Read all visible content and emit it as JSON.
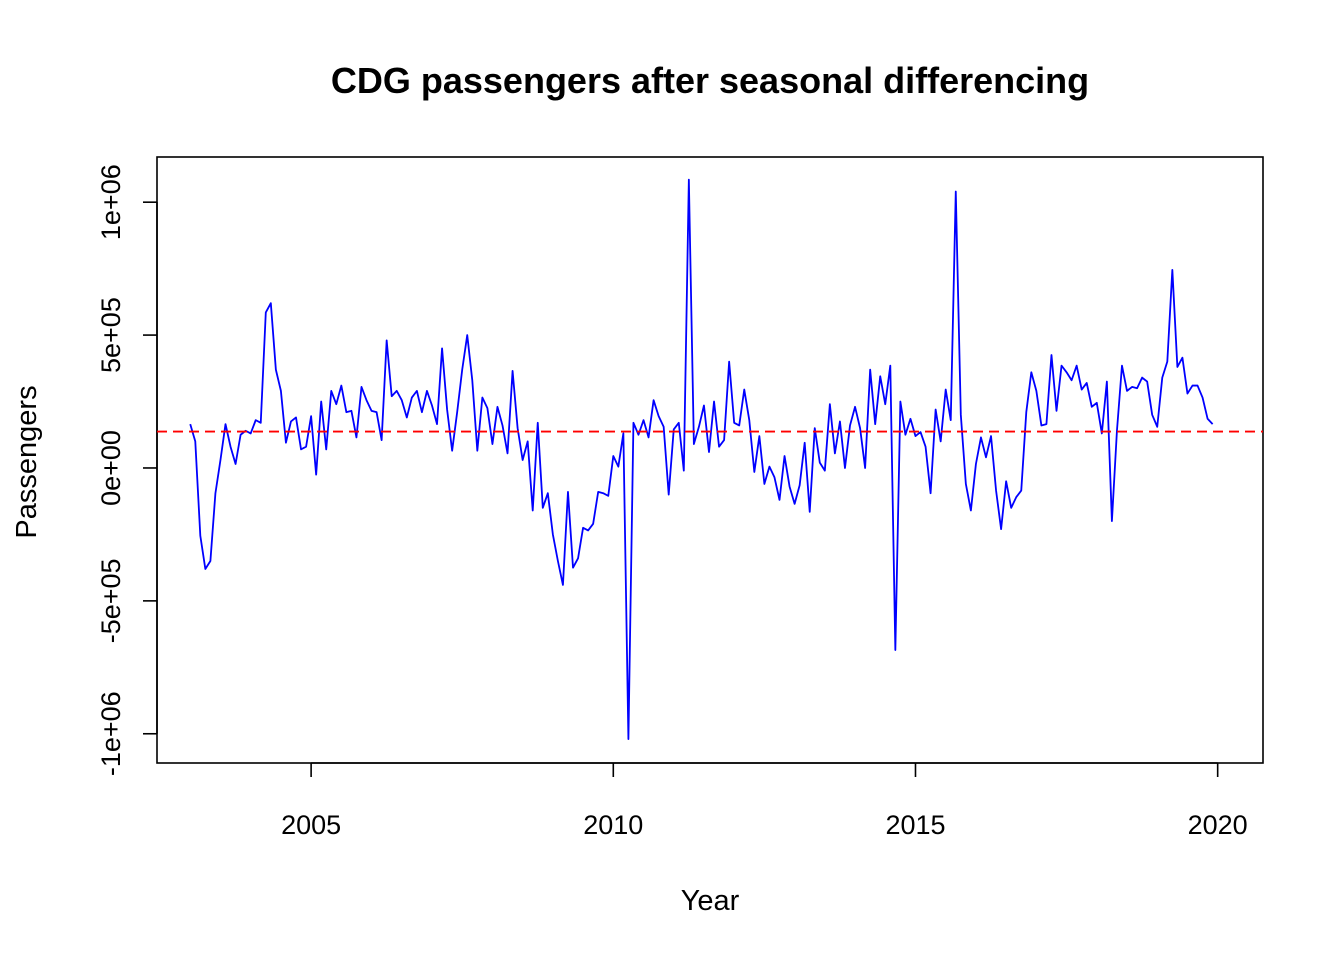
{
  "chart_data": {
    "type": "line",
    "title": "CDG passengers after seasonal differencing",
    "xlabel": "Year",
    "ylabel": "Passengers",
    "xlim": [
      2002.45,
      2020.75
    ],
    "ylim": [
      -1110000,
      1170000
    ],
    "x_ticks": [
      2005,
      2010,
      2015,
      2020
    ],
    "x_tick_labels": [
      "2005",
      "2010",
      "2015",
      "2020"
    ],
    "y_ticks": [
      -1000000,
      -500000,
      0,
      500000,
      1000000
    ],
    "y_tick_labels": [
      "-1e+06",
      "-5e+05",
      "0e+00",
      "5e+05",
      "1e+06"
    ],
    "grid": false,
    "legend": "none",
    "series": [
      {
        "color": "#0000ff",
        "x_start": 2003.0,
        "x_step": 0.083333,
        "values": [
          165000,
          100000,
          -255000,
          -380000,
          -350000,
          -95000,
          30000,
          165000,
          80000,
          15000,
          125000,
          140000,
          130000,
          180000,
          170000,
          585000,
          620000,
          370000,
          290000,
          95000,
          175000,
          190000,
          70000,
          80000,
          195000,
          -25000,
          250000,
          70000,
          290000,
          240000,
          310000,
          210000,
          215000,
          115000,
          305000,
          255000,
          215000,
          210000,
          105000,
          480000,
          270000,
          290000,
          255000,
          190000,
          265000,
          290000,
          210000,
          290000,
          235000,
          165000,
          450000,
          220000,
          65000,
          210000,
          370000,
          500000,
          330000,
          65000,
          265000,
          225000,
          90000,
          230000,
          160000,
          55000,
          365000,
          150000,
          30000,
          100000,
          -160000,
          170000,
          -150000,
          -95000,
          -250000,
          -350000,
          -440000,
          -90000,
          -375000,
          -340000,
          -225000,
          -235000,
          -210000,
          -90000,
          -95000,
          -105000,
          45000,
          5000,
          130000,
          -1020000,
          170000,
          125000,
          180000,
          115000,
          255000,
          195000,
          155000,
          -100000,
          145000,
          170000,
          -10000,
          1085000,
          90000,
          155000,
          235000,
          60000,
          250000,
          80000,
          105000,
          400000,
          170000,
          160000,
          295000,
          180000,
          -15000,
          120000,
          -60000,
          5000,
          -35000,
          -120000,
          45000,
          -70000,
          -135000,
          -65000,
          95000,
          -165000,
          150000,
          20000,
          -10000,
          240000,
          55000,
          175000,
          0,
          160000,
          230000,
          150000,
          0,
          370000,
          165000,
          345000,
          240000,
          385000,
          -685000,
          250000,
          125000,
          185000,
          120000,
          135000,
          80000,
          -95000,
          220000,
          100000,
          295000,
          180000,
          1040000,
          200000,
          -60000,
          -160000,
          15000,
          115000,
          40000,
          120000,
          -85000,
          -230000,
          -50000,
          -150000,
          -110000,
          -85000,
          210000,
          360000,
          290000,
          160000,
          165000,
          425000,
          215000,
          385000,
          360000,
          330000,
          385000,
          295000,
          320000,
          230000,
          245000,
          130000,
          325000,
          -200000,
          140000,
          385000,
          290000,
          305000,
          300000,
          340000,
          325000,
          200000,
          155000,
          340000,
          400000,
          745000,
          380000,
          415000,
          280000,
          310000,
          310000,
          265000,
          185000,
          165000
        ]
      },
      {
        "color": "#ff0000",
        "style": "dashed",
        "constant": 137000
      }
    ]
  }
}
